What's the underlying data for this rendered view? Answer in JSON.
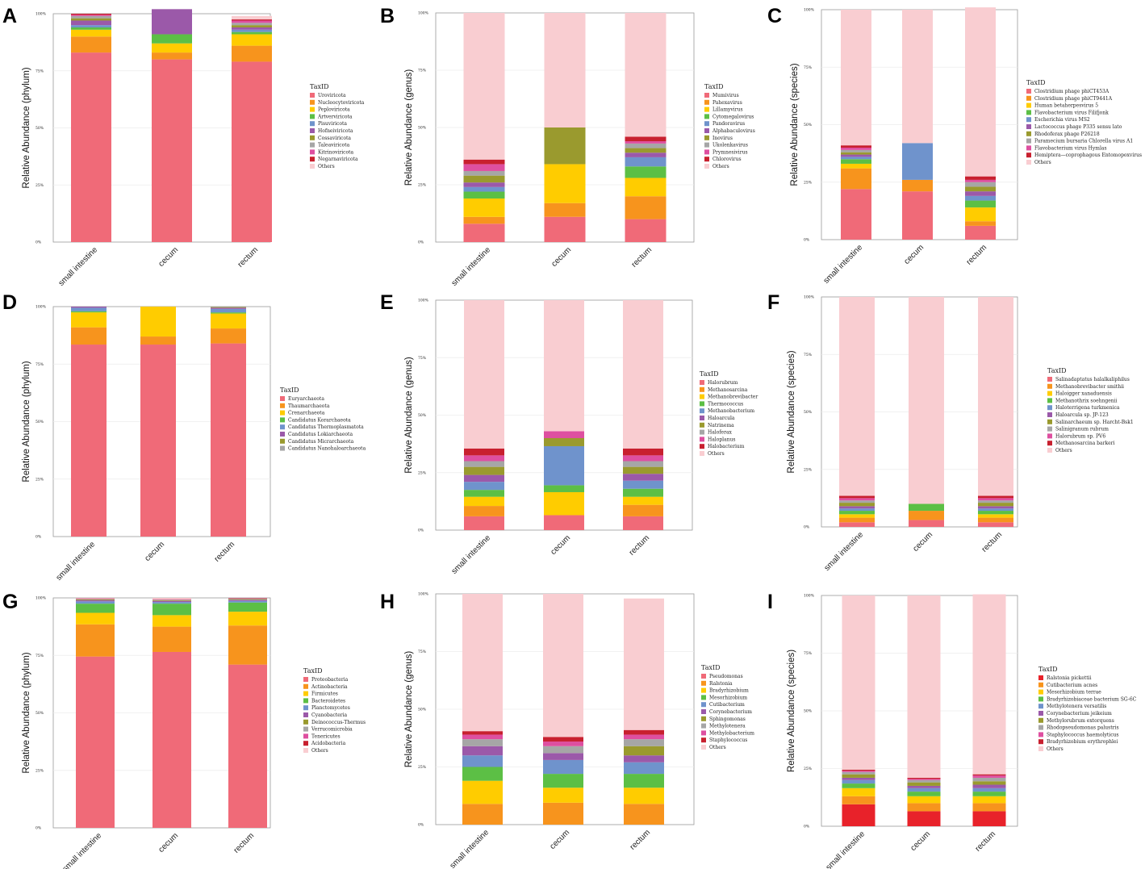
{
  "colors": [
    "#F06A78",
    "#F7941D",
    "#FFCC00",
    "#5CBF45",
    "#6F93CC",
    "#9B59A9",
    "#9A9A2E",
    "#A6A6A6",
    "#DE4FA0",
    "#C8202F",
    "#F9CDD1"
  ],
  "colors_i": [
    "#E8222A",
    "#F7941D",
    "#FFCC00",
    "#5CBF45",
    "#6F93CC",
    "#9B59A9",
    "#9A9A2E",
    "#A6A6A6",
    "#DE4FA0",
    "#C8202F",
    "#F9CDD1"
  ],
  "chart_data": [
    {
      "id": "A",
      "type": "bar",
      "stacked": true,
      "ylabel": "Relative Abundance (phylum)",
      "legend_title": "TaxID",
      "categories": [
        "small intestine",
        "cecum",
        "rectum"
      ],
      "yticks": [
        "0%",
        "25%",
        "50%",
        "75%",
        "100%"
      ],
      "ylim": [
        0,
        100
      ],
      "series": [
        {
          "name": "Uroviricota",
          "values": [
            83,
            80,
            79
          ]
        },
        {
          "name": "Nucleocytoviricota",
          "values": [
            7,
            3,
            7
          ]
        },
        {
          "name": "Peploviricota",
          "values": [
            3,
            4,
            5
          ]
        },
        {
          "name": "Artverviricota",
          "values": [
            1,
            4,
            1
          ]
        },
        {
          "name": "Pisuviricota",
          "values": [
            1,
            0,
            1
          ]
        },
        {
          "name": "Hofneiviricota",
          "values": [
            2,
            11,
            1
          ]
        },
        {
          "name": "Cossaviricota",
          "values": [
            1,
            0,
            1
          ]
        },
        {
          "name": "Taleaviricota",
          "values": [
            1,
            0,
            1
          ]
        },
        {
          "name": "Kitrinoviricota",
          "values": [
            0.5,
            0,
            1
          ]
        },
        {
          "name": "Negarnaviricota",
          "values": [
            0.5,
            0,
            0.5
          ]
        },
        {
          "name": "Others",
          "values": [
            0,
            0,
            1.5
          ]
        }
      ]
    },
    {
      "id": "B",
      "type": "bar",
      "stacked": true,
      "ylabel": "Relative Abundance (genus)",
      "legend_title": "TaxID",
      "categories": [
        "small intestine",
        "cecum",
        "rectum"
      ],
      "yticks": [
        "0%",
        "25%",
        "50%",
        "75%",
        "100%"
      ],
      "ylim": [
        0,
        100
      ],
      "series": [
        {
          "name": "Mumivirus",
          "values": [
            8,
            11,
            10
          ]
        },
        {
          "name": "Pahexavirus",
          "values": [
            3,
            6,
            10
          ]
        },
        {
          "name": "Lillamyvirus",
          "values": [
            8,
            17,
            8
          ]
        },
        {
          "name": "Cytomegalovirus",
          "values": [
            3,
            0,
            5
          ]
        },
        {
          "name": "Pandoravirus",
          "values": [
            2,
            0,
            4
          ]
        },
        {
          "name": "Alphabaculovirus",
          "values": [
            2,
            0,
            2
          ]
        },
        {
          "name": "Inovirus",
          "values": [
            3,
            16,
            2
          ]
        },
        {
          "name": "Ukolenkavirus",
          "values": [
            2,
            0,
            2
          ]
        },
        {
          "name": "Prymnesivirus",
          "values": [
            3,
            0,
            1
          ]
        },
        {
          "name": "Chlorovirus",
          "values": [
            2,
            0,
            2
          ]
        },
        {
          "name": "Others",
          "values": [
            64,
            50,
            54
          ]
        }
      ]
    },
    {
      "id": "C",
      "type": "bar",
      "stacked": true,
      "ylabel": "Relative Abundance (species)",
      "legend_title": "TaxID",
      "categories": [
        "small intestine",
        "cecum",
        "rectum"
      ],
      "yticks": [
        "0%",
        "25%",
        "50%",
        "75%",
        "100%"
      ],
      "ylim": [
        0,
        100
      ],
      "series": [
        {
          "name": "Clostridium phage phiCT453A",
          "values": [
            22,
            21,
            6
          ]
        },
        {
          "name": "Clostridium phage phiCT9441A",
          "values": [
            9,
            5,
            2
          ]
        },
        {
          "name": "Human betaherpesvirus 5",
          "values": [
            2,
            0,
            6
          ]
        },
        {
          "name": "Flavobacterium virus Filifjonk",
          "values": [
            2,
            0,
            3
          ]
        },
        {
          "name": "Escherichia virus MS2",
          "values": [
            1,
            16,
            2
          ]
        },
        {
          "name": "Lactococcus phage P335 sensu lato",
          "values": [
            1,
            0,
            2
          ]
        },
        {
          "name": "Rhodoferax phage P26218",
          "values": [
            1,
            0,
            2
          ]
        },
        {
          "name": "Paramecium bursaria Chlorella virus A1",
          "values": [
            1,
            0,
            2
          ]
        },
        {
          "name": "Flavobacterium virus Hymlas",
          "values": [
            1,
            0,
            1
          ]
        },
        {
          "name": "Hemiptera—coprophagous Entomopoxvirus",
          "values": [
            1,
            0,
            1.5
          ]
        },
        {
          "name": "Others",
          "values": [
            59,
            58,
            73.5
          ]
        }
      ]
    },
    {
      "id": "D",
      "type": "bar",
      "stacked": true,
      "ylabel": "Relative Abundance (phylum)",
      "legend_title": "TaxID",
      "categories": [
        "small intestine",
        "cecum",
        "rectum"
      ],
      "yticks": [
        "0%",
        "25%",
        "50%",
        "75%",
        "100%"
      ],
      "ylim": [
        0,
        100
      ],
      "series": [
        {
          "name": "Euryarchaeota",
          "values": [
            83.5,
            83.5,
            84
          ]
        },
        {
          "name": "Thaumarchaeota",
          "values": [
            7.5,
            3.5,
            6.5
          ]
        },
        {
          "name": "Crenarchaeota",
          "values": [
            6.5,
            13,
            6.5
          ]
        },
        {
          "name": "Candidatus Korarchaeota",
          "values": [
            0.5,
            0,
            0.5
          ]
        },
        {
          "name": "Candidatus Thermoplasmatota",
          "values": [
            1.5,
            0,
            1.5
          ]
        },
        {
          "name": "Candidatus Lokiarchaeota",
          "values": [
            0.5,
            0,
            0.5
          ]
        },
        {
          "name": "Candidatus Micrarchaeota",
          "values": [
            0,
            0,
            0.3
          ]
        },
        {
          "name": "Candidatus Nanohaloarchaeota",
          "values": [
            0,
            0,
            0.2
          ]
        }
      ]
    },
    {
      "id": "E",
      "type": "bar",
      "stacked": true,
      "ylabel": "Relative Abundance (genus)",
      "legend_title": "TaxID",
      "categories": [
        "small intestine",
        "cecum",
        "rectum"
      ],
      "yticks": [
        "0%",
        "25%",
        "50%",
        "75%",
        "100%"
      ],
      "ylim": [
        0,
        100
      ],
      "series": [
        {
          "name": "Halorubrum",
          "values": [
            6,
            6.5,
            6
          ]
        },
        {
          "name": "Methanosarcina",
          "values": [
            4.5,
            0,
            5
          ]
        },
        {
          "name": "Methanobrevibacter",
          "values": [
            4,
            10,
            3.5
          ]
        },
        {
          "name": "Thermococcus",
          "values": [
            3,
            3,
            3.5
          ]
        },
        {
          "name": "Methanobacterium",
          "values": [
            3.5,
            17,
            3.5
          ]
        },
        {
          "name": "Haloarcula",
          "values": [
            3,
            0,
            3
          ]
        },
        {
          "name": "Natrinema",
          "values": [
            3.5,
            3.5,
            3
          ]
        },
        {
          "name": "Haloferax",
          "values": [
            2.5,
            0,
            2.5
          ]
        },
        {
          "name": "Haloplanus",
          "values": [
            2.5,
            3,
            2.5
          ]
        },
        {
          "name": "Halobacterium",
          "values": [
            3,
            0,
            3
          ]
        },
        {
          "name": "Others",
          "values": [
            64.5,
            57,
            64.5
          ]
        }
      ]
    },
    {
      "id": "F",
      "type": "bar",
      "stacked": true,
      "ylabel": "Relative Abundance (species)",
      "legend_title": "TaxID",
      "categories": [
        "small intestine",
        "cecum",
        "rectum"
      ],
      "yticks": [
        "0%",
        "25%",
        "50%",
        "75%",
        "100%"
      ],
      "ylim": [
        0,
        100
      ],
      "series": [
        {
          "name": "Salinadaptatus halalkaliphilus",
          "values": [
            2,
            3,
            2
          ]
        },
        {
          "name": "Methanobrevibacter smithii",
          "values": [
            2,
            4,
            2
          ]
        },
        {
          "name": "Haloigger xanaduensis",
          "values": [
            1.5,
            0,
            1.5
          ]
        },
        {
          "name": "Methanothrix soehngenii",
          "values": [
            1.5,
            3,
            1.5
          ]
        },
        {
          "name": "Haloterrigena turkmenica",
          "values": [
            1,
            0,
            1
          ]
        },
        {
          "name": "Haloarcula sp. JP-123",
          "values": [
            1,
            0,
            1
          ]
        },
        {
          "name": "Salinarchaeum sp. Harcht-Bsk1",
          "values": [
            1.5,
            0,
            1.5
          ]
        },
        {
          "name": "Salinigranum rubrum",
          "values": [
            1,
            0,
            1
          ]
        },
        {
          "name": "Halorubrum sp. PV6",
          "values": [
            1,
            0,
            1
          ]
        },
        {
          "name": "Methanosarcina barkeri",
          "values": [
            1,
            0,
            1
          ]
        },
        {
          "name": "Others",
          "values": [
            86.5,
            90,
            86.5
          ]
        }
      ]
    },
    {
      "id": "G",
      "type": "bar",
      "stacked": true,
      "ylabel": "Relative Abundance (phylum)",
      "legend_title": "TaxID",
      "categories": [
        "small intestine",
        "cecum",
        "rectum"
      ],
      "yticks": [
        "0%",
        "25%",
        "50%",
        "75%",
        "100%"
      ],
      "ylim": [
        0,
        100
      ],
      "series": [
        {
          "name": "Proteobacteria",
          "values": [
            74.5,
            76.5,
            71
          ]
        },
        {
          "name": "Actinobacteria",
          "values": [
            14,
            11,
            17
          ]
        },
        {
          "name": "Firmicutes",
          "values": [
            5,
            5,
            6
          ]
        },
        {
          "name": "Bacteroidetes",
          "values": [
            4,
            5,
            4
          ]
        },
        {
          "name": "Planctomycetes",
          "values": [
            1,
            0.7,
            0.7
          ]
        },
        {
          "name": "Cyanobacteria",
          "values": [
            0.5,
            0.5,
            0.5
          ]
        },
        {
          "name": "Deinococcus-Thermus",
          "values": [
            0.3,
            0.3,
            0.3
          ]
        },
        {
          "name": "Verrucomicrobia",
          "values": [
            0.2,
            0.2,
            0.2
          ]
        },
        {
          "name": "Tenericutes",
          "values": [
            0.2,
            0.2,
            0.2
          ]
        },
        {
          "name": "Acidobacteria",
          "values": [
            0.1,
            0.1,
            0.1
          ]
        },
        {
          "name": "Others",
          "values": [
            0.2,
            0.5,
            0
          ]
        }
      ]
    },
    {
      "id": "H",
      "type": "bar",
      "stacked": true,
      "ylabel": "Relative Abundance (genus)",
      "legend_title": "TaxID",
      "categories": [
        "small intestine",
        "cecum",
        "rectum"
      ],
      "yticks": [
        "0%",
        "25%",
        "50%",
        "75%",
        "100%"
      ],
      "ylim": [
        0,
        100
      ],
      "series": [
        {
          "name": "Pseudomonas",
          "values": [
            0,
            0,
            0
          ]
        },
        {
          "name": "Ralstonia",
          "values": [
            9,
            9.5,
            9
          ]
        },
        {
          "name": "Bradyrhizobium",
          "values": [
            10,
            6.5,
            7
          ]
        },
        {
          "name": "Mesorhizobium",
          "values": [
            6,
            6,
            6
          ]
        },
        {
          "name": "Cutibacterium",
          "values": [
            5,
            6,
            5
          ]
        },
        {
          "name": "Corynebacterium",
          "values": [
            4,
            3,
            3
          ]
        },
        {
          "name": "Sphingomonas",
          "values": [
            0,
            0,
            4
          ]
        },
        {
          "name": "Methylotenera",
          "values": [
            3,
            3,
            3
          ]
        },
        {
          "name": "Methylobacterium",
          "values": [
            2,
            2,
            2
          ]
        },
        {
          "name": "Staphylococcus",
          "values": [
            1.5,
            2,
            2
          ]
        },
        {
          "name": "Others",
          "values": [
            59.5,
            62,
            57
          ]
        }
      ]
    },
    {
      "id": "I",
      "type": "bar",
      "stacked": true,
      "ylabel": "Relative Abundance (species)",
      "legend_title": "TaxID",
      "categories": [
        "small intestine",
        "cecum",
        "rectum"
      ],
      "yticks": [
        "0%",
        "25%",
        "50%",
        "75%",
        "100%"
      ],
      "ylim": [
        0,
        100
      ],
      "series": [
        {
          "name": "Ralstonia pickettii",
          "values": [
            9.5,
            6.5,
            6.5
          ]
        },
        {
          "name": "Cutibacterium acnes",
          "values": [
            3.5,
            3.5,
            3.5
          ]
        },
        {
          "name": "Mesorhizobium terrae",
          "values": [
            3.5,
            3,
            3
          ]
        },
        {
          "name": "Bradyrhizobiaceae bacterium SG-6C",
          "values": [
            2,
            2,
            2
          ]
        },
        {
          "name": "Methylotenera versatilis",
          "values": [
            1.5,
            1.5,
            1.5
          ]
        },
        {
          "name": "Corynebacterium jeikeium",
          "values": [
            1,
            1,
            1.5
          ]
        },
        {
          "name": "Methylorubrum extorquens",
          "values": [
            1.5,
            1.5,
            1.5
          ]
        },
        {
          "name": "Rhodopseudomonas palustris",
          "values": [
            1,
            1,
            1.5
          ]
        },
        {
          "name": "Staphylococcus haemolyticus",
          "values": [
            0.5,
            0.5,
            1
          ]
        },
        {
          "name": "Bradyrhizobium erythrophlei",
          "values": [
            0.5,
            0.5,
            0.5
          ]
        },
        {
          "name": "Others",
          "values": [
            75.5,
            79,
            78
          ]
        }
      ]
    }
  ]
}
